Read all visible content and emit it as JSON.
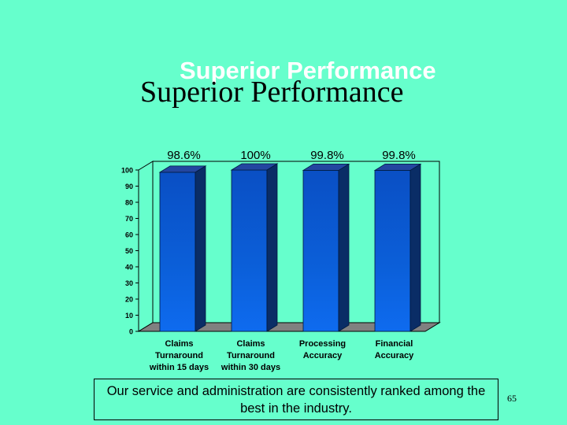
{
  "slide": {
    "title_overlay": "Superior Performance",
    "title": "Superior Performance",
    "caption": "Our service and administration are consistently ranked among the best in the industry.",
    "page_number": "65"
  },
  "colors": {
    "background": "#66FFCC",
    "bar_front": "#0B5FD9",
    "bar_side": "#0A2D66",
    "bar_top": "#2346A0",
    "floor": "#808080"
  },
  "chart_data": {
    "type": "bar",
    "style": "3d",
    "categories": [
      [
        "Claims",
        "Turnaround",
        "within 15 days"
      ],
      [
        "Claims",
        "Turnaround",
        "within 30 days"
      ],
      [
        "Processing",
        "Accuracy"
      ],
      [
        "Financial",
        "Accuracy"
      ]
    ],
    "values": [
      98.6,
      100,
      99.8,
      99.8
    ],
    "data_labels": [
      "98.6%",
      "100%",
      "99.8%",
      "99.8%"
    ],
    "ylim": [
      0,
      100
    ],
    "yticks": [
      0,
      10,
      20,
      30,
      40,
      50,
      60,
      70,
      80,
      90,
      100
    ],
    "grid": false,
    "legend": "none"
  }
}
